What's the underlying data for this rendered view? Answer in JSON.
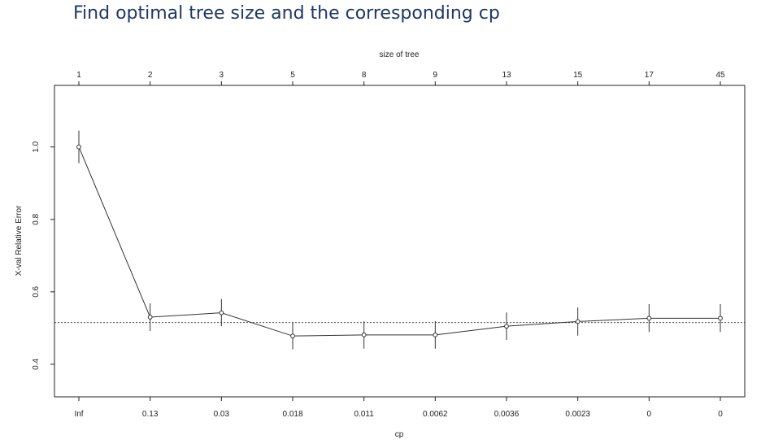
{
  "slide": {
    "title": "Find optimal tree size and the corresponding cp"
  },
  "chart_data": {
    "type": "line",
    "title": "",
    "xlabel": "cp",
    "ylabel": "X-val Relative Error",
    "top_axis_label": "size of tree",
    "categories": [
      "Inf",
      "0.13",
      "0.03",
      "0.018",
      "0.011",
      "0.0062",
      "0.0036",
      "0.0023",
      "0",
      "0"
    ],
    "top_categories": [
      "1",
      "2",
      "3",
      "5",
      "8",
      "9",
      "13",
      "15",
      "17",
      "45"
    ],
    "y_ticks": [
      "0.4",
      "0.6",
      "0.8",
      "1.0"
    ],
    "ylim": [
      0.31,
      1.17
    ],
    "series": [
      {
        "values": [
          1.0,
          0.53,
          0.542,
          0.478,
          0.481,
          0.481,
          0.505,
          0.518,
          0.527,
          0.527
        ],
        "error_lower": [
          0.955,
          0.492,
          0.505,
          0.441,
          0.443,
          0.443,
          0.467,
          0.479,
          0.489,
          0.489
        ],
        "error_upper": [
          1.045,
          0.568,
          0.58,
          0.516,
          0.519,
          0.519,
          0.543,
          0.557,
          0.566,
          0.566
        ]
      }
    ],
    "reference_line": 0.515,
    "grid": false,
    "color": "#333333"
  }
}
